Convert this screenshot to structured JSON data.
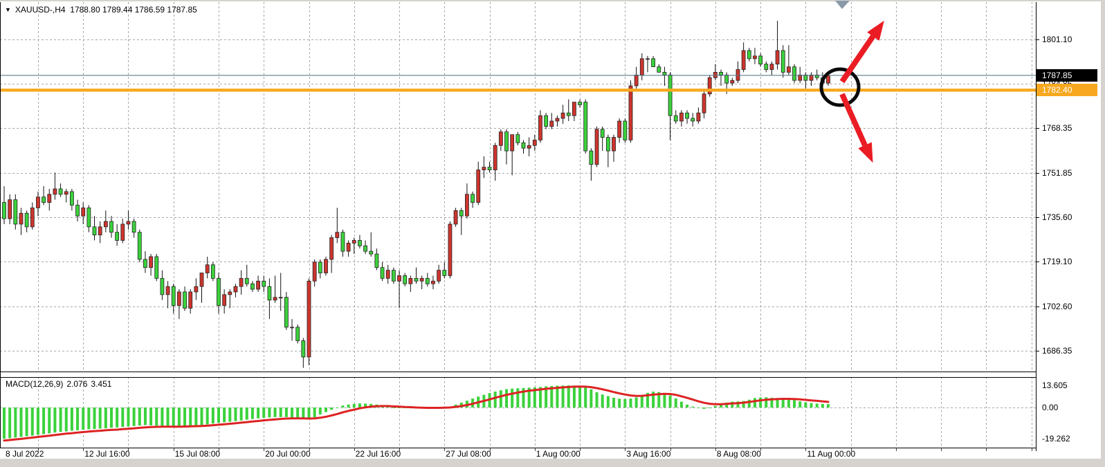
{
  "title": {
    "dropdown_icon": "▼",
    "symbol_period": "XAUUSD-,H4",
    "ohlc_values": "1788.80 1789.44 1786.59 1787.85"
  },
  "colors": {
    "background": "#ffffff",
    "grid": "#a8a8a8",
    "bull": "#cd352e",
    "bear": "#3bd23b",
    "wick": "#111111",
    "orange_line": "#f7a820",
    "current_line": "#5b7a88",
    "current_tag_bg": "#000000",
    "tag_text": "#ffffff",
    "macd_hist": "#3bd23b",
    "macd_signal": "#dd2222",
    "annotation_red": "#ea1c24",
    "annotation_black": "#0a0a0a",
    "marker_gray": "#8a9aa8",
    "axis_text": "#000000"
  },
  "chart_data": {
    "type": "candlestick",
    "symbol": "XAUUSD-",
    "timeframe": "H4",
    "ohlc_current": {
      "open": "1788.80",
      "high": "1789.44",
      "low": "1786.59",
      "close": "1787.85"
    },
    "price_axis_labels": [
      "1801.10",
      "1784.85",
      "1768.35",
      "1751.85",
      "1735.60",
      "1719.10",
      "1702.60",
      "1686.35"
    ],
    "time_axis": [
      {
        "label": "8 Jul 2022",
        "bar": 0
      },
      {
        "label": "12 Jul 16:00",
        "bar": 14
      },
      {
        "label": "15 Jul 08:00",
        "bar": 30
      },
      {
        "label": "20 Jul 00:00",
        "bar": 46
      },
      {
        "label": "22 Jul 16:00",
        "bar": 62
      },
      {
        "label": "27 Jul 08:00",
        "bar": 78
      },
      {
        "label": "1 Aug 00:00",
        "bar": 94
      },
      {
        "label": "3 Aug 16:00",
        "bar": 110
      },
      {
        "label": "8 Aug 08:00",
        "bar": 126
      },
      {
        "label": "11 Aug 00:00",
        "bar": 142
      }
    ],
    "levels": {
      "current_price": "1787.85",
      "orange_line_price": "1782.40"
    },
    "candles_ohlc": [
      [
        1741,
        1747,
        1733,
        1735
      ],
      [
        1735,
        1744,
        1733,
        1742
      ],
      [
        1742,
        1744,
        1731,
        1733
      ],
      [
        1733,
        1739,
        1729,
        1737
      ],
      [
        1737,
        1738,
        1730,
        1732
      ],
      [
        1732,
        1741,
        1731,
        1739
      ],
      [
        1739,
        1745,
        1736,
        1743
      ],
      [
        1743,
        1747,
        1740,
        1741
      ],
      [
        1741,
        1746,
        1738,
        1744
      ],
      [
        1744,
        1752,
        1742,
        1746
      ],
      [
        1746,
        1748,
        1743,
        1744
      ],
      [
        1744,
        1746,
        1741,
        1745
      ],
      [
        1745,
        1746,
        1738,
        1740
      ],
      [
        1740,
        1742,
        1734,
        1736
      ],
      [
        1736,
        1741,
        1733,
        1739
      ],
      [
        1739,
        1740,
        1730,
        1732
      ],
      [
        1732,
        1736,
        1727,
        1729
      ],
      [
        1729,
        1734,
        1726,
        1732
      ],
      [
        1732,
        1738,
        1730,
        1734
      ],
      [
        1734,
        1736,
        1728,
        1730
      ],
      [
        1730,
        1733,
        1725,
        1727
      ],
      [
        1727,
        1735,
        1726,
        1733
      ],
      [
        1733,
        1738,
        1731,
        1734
      ],
      [
        1734,
        1735,
        1728,
        1730
      ],
      [
        1730,
        1731,
        1719,
        1720
      ],
      [
        1720,
        1723,
        1715,
        1717
      ],
      [
        1717,
        1722,
        1714,
        1721
      ],
      [
        1721,
        1722,
        1712,
        1713
      ],
      [
        1713,
        1716,
        1705,
        1707
      ],
      [
        1707,
        1712,
        1702,
        1710
      ],
      [
        1710,
        1711,
        1700,
        1703
      ],
      [
        1703,
        1709,
        1698,
        1708
      ],
      [
        1708,
        1710,
        1701,
        1702
      ],
      [
        1702,
        1709,
        1700,
        1708
      ],
      [
        1708,
        1713,
        1705,
        1710
      ],
      [
        1710,
        1715,
        1704,
        1715
      ],
      [
        1715,
        1721,
        1713,
        1718
      ],
      [
        1718,
        1719,
        1712,
        1713
      ],
      [
        1713,
        1715,
        1700,
        1703
      ],
      [
        1703,
        1709,
        1700,
        1707
      ],
      [
        1707,
        1709,
        1702,
        1708
      ],
      [
        1708,
        1711,
        1706,
        1710
      ],
      [
        1710,
        1716,
        1707,
        1713
      ],
      [
        1713,
        1718,
        1710,
        1711
      ],
      [
        1711,
        1712,
        1708,
        1709
      ],
      [
        1709,
        1714,
        1708,
        1712
      ],
      [
        1712,
        1714,
        1708,
        1710
      ],
      [
        1710,
        1713,
        1698,
        1705
      ],
      [
        1705,
        1714,
        1704,
        1706
      ],
      [
        1706,
        1715,
        1701,
        1706
      ],
      [
        1706,
        1708,
        1694,
        1695
      ],
      [
        1695,
        1698,
        1690,
        1695
      ],
      [
        1695,
        1696,
        1689,
        1690
      ],
      [
        1690,
        1691,
        1680,
        1684
      ],
      [
        1684,
        1713,
        1681,
        1712
      ],
      [
        1712,
        1720,
        1710,
        1719
      ],
      [
        1719,
        1720,
        1713,
        1715
      ],
      [
        1715,
        1721,
        1714,
        1720
      ],
      [
        1720,
        1729,
        1715,
        1728
      ],
      [
        1728,
        1739,
        1726,
        1730
      ],
      [
        1730,
        1731,
        1721,
        1723
      ],
      [
        1723,
        1727,
        1721,
        1726
      ],
      [
        1726,
        1728,
        1722,
        1727
      ],
      [
        1727,
        1729,
        1724,
        1725
      ],
      [
        1725,
        1727,
        1722,
        1723
      ],
      [
        1723,
        1730,
        1721,
        1722
      ],
      [
        1722,
        1724,
        1716,
        1717
      ],
      [
        1717,
        1719,
        1712,
        1713
      ],
      [
        1713,
        1718,
        1711,
        1716
      ],
      [
        1716,
        1717,
        1711,
        1712
      ],
      [
        1712,
        1716,
        1702,
        1714
      ],
      [
        1714,
        1715,
        1710,
        1711
      ],
      [
        1711,
        1714,
        1708,
        1713
      ],
      [
        1713,
        1717,
        1711,
        1712
      ],
      [
        1712,
        1714,
        1709,
        1713
      ],
      [
        1713,
        1715,
        1710,
        1711
      ],
      [
        1711,
        1714,
        1709,
        1712
      ],
      [
        1712,
        1718,
        1711,
        1716
      ],
      [
        1716,
        1719,
        1713,
        1714
      ],
      [
        1714,
        1734,
        1713,
        1733
      ],
      [
        1733,
        1739,
        1732,
        1738
      ],
      [
        1738,
        1739,
        1729,
        1736
      ],
      [
        1736,
        1748,
        1735,
        1744
      ],
      [
        1744,
        1745,
        1739,
        1741
      ],
      [
        1741,
        1756,
        1740,
        1753
      ],
      [
        1753,
        1758,
        1750,
        1754
      ],
      [
        1754,
        1756,
        1752,
        1753
      ],
      [
        1753,
        1763,
        1749,
        1762
      ],
      [
        1762,
        1768,
        1760,
        1767
      ],
      [
        1767,
        1768,
        1755,
        1760
      ],
      [
        1760,
        1766,
        1751,
        1766
      ],
      [
        1766,
        1767,
        1762,
        1763
      ],
      [
        1763,
        1764,
        1759,
        1761
      ],
      [
        1761,
        1765,
        1758,
        1762
      ],
      [
        1762,
        1766,
        1760,
        1764
      ],
      [
        1764,
        1775,
        1763,
        1773
      ],
      [
        1773,
        1774,
        1768,
        1769
      ],
      [
        1769,
        1774,
        1768,
        1771
      ],
      [
        1771,
        1773,
        1769,
        1772
      ],
      [
        1772,
        1777,
        1770,
        1774
      ],
      [
        1774,
        1779,
        1771,
        1773
      ],
      [
        1773,
        1778,
        1771,
        1778
      ],
      [
        1778,
        1779,
        1776,
        1777
      ],
      [
        1778,
        1779,
        1759,
        1760
      ],
      [
        1760,
        1761,
        1749,
        1755
      ],
      [
        1755,
        1769,
        1754,
        1768
      ],
      [
        1768,
        1769,
        1760,
        1765
      ],
      [
        1765,
        1766,
        1754,
        1760
      ],
      [
        1760,
        1766,
        1756,
        1765
      ],
      [
        1765,
        1772,
        1763,
        1771
      ],
      [
        1771,
        1772,
        1763,
        1764
      ],
      [
        1764,
        1786,
        1763,
        1784
      ],
      [
        1784,
        1791,
        1783,
        1788
      ],
      [
        1788,
        1796,
        1786,
        1794
      ],
      [
        1794,
        1795,
        1789,
        1794
      ],
      [
        1794,
        1795,
        1791,
        1791
      ],
      [
        1791,
        1792,
        1789,
        1789
      ],
      [
        1789,
        1791,
        1784,
        1788
      ],
      [
        1788,
        1789,
        1764,
        1773
      ],
      [
        1773,
        1775,
        1770,
        1771
      ],
      [
        1771,
        1775,
        1769,
        1774
      ],
      [
        1774,
        1775,
        1770,
        1772
      ],
      [
        1772,
        1774,
        1769,
        1771
      ],
      [
        1771,
        1776,
        1770,
        1774
      ],
      [
        1774,
        1782,
        1772,
        1781
      ],
      [
        1781,
        1788,
        1780,
        1787
      ],
      [
        1787,
        1792,
        1786,
        1789
      ],
      [
        1789,
        1790,
        1784,
        1788
      ],
      [
        1788,
        1789,
        1781,
        1785
      ],
      [
        1785,
        1787,
        1784,
        1786
      ],
      [
        1786,
        1793,
        1785,
        1790
      ],
      [
        1790,
        1800,
        1789,
        1797
      ],
      [
        1797,
        1798,
        1793,
        1794
      ],
      [
        1794,
        1798,
        1792,
        1795
      ],
      [
        1795,
        1796,
        1791,
        1792
      ],
      [
        1792,
        1793,
        1789,
        1790
      ],
      [
        1790,
        1793,
        1788,
        1792
      ],
      [
        1792,
        1808,
        1790,
        1797
      ],
      [
        1797,
        1799,
        1787,
        1789
      ],
      [
        1789,
        1799,
        1788,
        1791
      ],
      [
        1791,
        1792,
        1785,
        1786
      ],
      [
        1786,
        1791,
        1785,
        1788
      ],
      [
        1788,
        1789,
        1783,
        1786
      ],
      [
        1786,
        1789,
        1784,
        1788
      ],
      [
        1788,
        1790,
        1786,
        1787
      ],
      [
        1787,
        1789,
        1783,
        1785
      ],
      [
        1785,
        1789,
        1784,
        1787.85
      ]
    ],
    "macd": {
      "label": "MACD(12,26,9)",
      "main_value": "2.076",
      "signal_value": "3.451",
      "axis_labels": [
        "13.605",
        "0.00",
        "-19.262"
      ],
      "histogram": [
        -19.26,
        -18.9,
        -18.5,
        -18.1,
        -17.7,
        -17.3,
        -16.8,
        -16.4,
        -15.9,
        -15.4,
        -15.0,
        -14.7,
        -14.3,
        -14.0,
        -13.7,
        -13.4,
        -13.2,
        -13.0,
        -12.8,
        -12.5,
        -12.3,
        -12.0,
        -11.7,
        -11.4,
        -11.1,
        -10.8,
        -11.0,
        -11.2,
        -11.4,
        -11.6,
        -11.8,
        -11.6,
        -11.4,
        -11.2,
        -11.0,
        -10.9,
        -10.4,
        -9.9,
        -9.4,
        -9.1,
        -8.8,
        -8.4,
        -8.0,
        -7.5,
        -7.1,
        -6.7,
        -6.4,
        -6.1,
        -5.9,
        -5.9,
        -5.9,
        -6.3,
        -6.7,
        -7.0,
        -7.2,
        -6.0,
        -4.3,
        -2.8,
        -1.4,
        -0.2,
        1.2,
        1.8,
        2.2,
        2.5,
        2.4,
        2.2,
        1.8,
        1.2,
        0.6,
        0.1,
        -0.2,
        -0.4,
        -0.5,
        -0.6,
        -0.5,
        -0.4,
        -0.3,
        -0.2,
        0.2,
        0.6,
        1.8,
        3.0,
        4.2,
        5.5,
        6.7,
        7.8,
        8.9,
        9.8,
        10.6,
        11.3,
        11.6,
        11.8,
        12.0,
        12.2,
        12.4,
        12.6,
        13.0,
        13.2,
        13.4,
        13.5,
        13.6,
        13.5,
        13.2,
        12.4,
        11.2,
        9.4,
        8.0,
        7.0,
        6.0,
        5.4,
        5.2,
        5.5,
        6.2,
        7.6,
        9.0,
        9.8,
        9.5,
        8.8,
        7.4,
        5.6,
        3.6,
        1.8,
        0.6,
        -0.4,
        -0.8,
        -0.2,
        1.0,
        2.2,
        3.0,
        3.6,
        3.7,
        4.0,
        4.8,
        5.8,
        6.2,
        6.3,
        6.0,
        5.6,
        5.9,
        5.3,
        4.6,
        3.8,
        3.2,
        2.7,
        2.4,
        2.2,
        2.076
      ],
      "signal": [
        -20.3,
        -20.0,
        -19.6,
        -19.3,
        -18.9,
        -18.5,
        -18.1,
        -17.7,
        -17.3,
        -16.9,
        -16.5,
        -16.1,
        -15.8,
        -15.4,
        -15.1,
        -14.8,
        -14.5,
        -14.3,
        -14.0,
        -13.8,
        -13.6,
        -13.3,
        -13.1,
        -12.8,
        -12.5,
        -12.2,
        -12.0,
        -11.9,
        -11.8,
        -11.8,
        -11.8,
        -11.8,
        -11.7,
        -11.6,
        -11.5,
        -11.4,
        -11.2,
        -10.9,
        -10.6,
        -10.3,
        -10.0,
        -9.7,
        -9.3,
        -9.0,
        -8.6,
        -8.3,
        -7.9,
        -7.6,
        -7.3,
        -7.0,
        -6.8,
        -6.7,
        -6.7,
        -6.7,
        -6.8,
        -6.7,
        -6.3,
        -5.7,
        -4.9,
        -4.0,
        -3.0,
        -2.1,
        -1.3,
        -0.5,
        0.1,
        0.5,
        0.8,
        0.9,
        0.9,
        0.7,
        0.5,
        0.3,
        0.2,
        0.0,
        -0.1,
        -0.2,
        -0.2,
        -0.2,
        -0.1,
        0.0,
        0.4,
        0.9,
        1.5,
        2.3,
        3.2,
        4.1,
        5.0,
        6.0,
        6.9,
        7.8,
        8.5,
        9.2,
        9.8,
        10.3,
        10.7,
        11.1,
        11.5,
        11.8,
        12.1,
        12.4,
        12.6,
        12.8,
        12.9,
        12.8,
        12.5,
        11.9,
        11.2,
        10.4,
        9.5,
        8.7,
        8.0,
        7.4,
        7.1,
        7.2,
        7.5,
        7.9,
        8.2,
        8.4,
        8.3,
        7.8,
        6.9,
        5.9,
        4.9,
        3.8,
        2.9,
        2.3,
        2.0,
        2.0,
        2.2,
        2.5,
        2.7,
        3.0,
        3.4,
        3.9,
        4.4,
        4.8,
        5.0,
        5.2,
        5.3,
        5.3,
        5.2,
        5.0,
        4.7,
        4.4,
        4.1,
        3.8,
        3.451
      ]
    },
    "annotations": {
      "circle": "black highlight circle around latest candles at the 1782.40 line",
      "arrow_up": "red arrow pointing up-right",
      "arrow_down": "red arrow pointing down-right",
      "top_marker": "gray chart-shift triangle at top"
    }
  }
}
